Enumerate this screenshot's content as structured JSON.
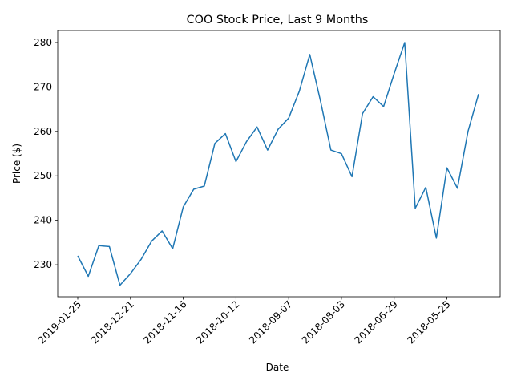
{
  "chart_data": {
    "type": "line",
    "title": "COO Stock Price, Last 9 Months",
    "xlabel": "Date",
    "ylabel": "Price ($)",
    "x_tick_labels": [
      "2019-01-25",
      "2018-12-21",
      "2018-11-16",
      "2018-10-12",
      "2018-09-07",
      "2018-08-03",
      "2018-06-29",
      "2018-05-25"
    ],
    "y_ticks": [
      230,
      240,
      250,
      260,
      270,
      280
    ],
    "ylim": [
      222.8,
      282.7
    ],
    "grid": false,
    "series": [
      {
        "color": "#1f77b4",
        "x": [
          "2019-01-25",
          "2019-01-18",
          "2019-01-11",
          "2019-01-04",
          "2018-12-28",
          "2018-12-21",
          "2018-12-14",
          "2018-12-07",
          "2018-11-30",
          "2018-11-23",
          "2018-11-16",
          "2018-11-09",
          "2018-11-02",
          "2018-10-26",
          "2018-10-19",
          "2018-10-12",
          "2018-10-05",
          "2018-09-28",
          "2018-09-21",
          "2018-09-14",
          "2018-09-07",
          "2018-08-31",
          "2018-08-24",
          "2018-08-17",
          "2018-08-10",
          "2018-08-03",
          "2018-07-27",
          "2018-07-20",
          "2018-07-13",
          "2018-07-06",
          "2018-06-29",
          "2018-06-22",
          "2018-06-15",
          "2018-06-08",
          "2018-06-01",
          "2018-05-25",
          "2018-05-18",
          "2018-05-11",
          "2018-05-04"
        ],
        "values": [
          232.0,
          227.4,
          234.3,
          234.1,
          225.4,
          228.0,
          231.2,
          235.3,
          237.6,
          233.6,
          243.0,
          247.0,
          247.7,
          257.3,
          259.5,
          253.2,
          257.7,
          261.0,
          255.8,
          260.5,
          263.0,
          269.0,
          277.3,
          267.0,
          255.8,
          255.0,
          249.8,
          264.0,
          267.8,
          265.6,
          273.0,
          280.0,
          242.7,
          247.4,
          236.0,
          251.8,
          247.2,
          260.0,
          268.4
        ]
      }
    ]
  }
}
